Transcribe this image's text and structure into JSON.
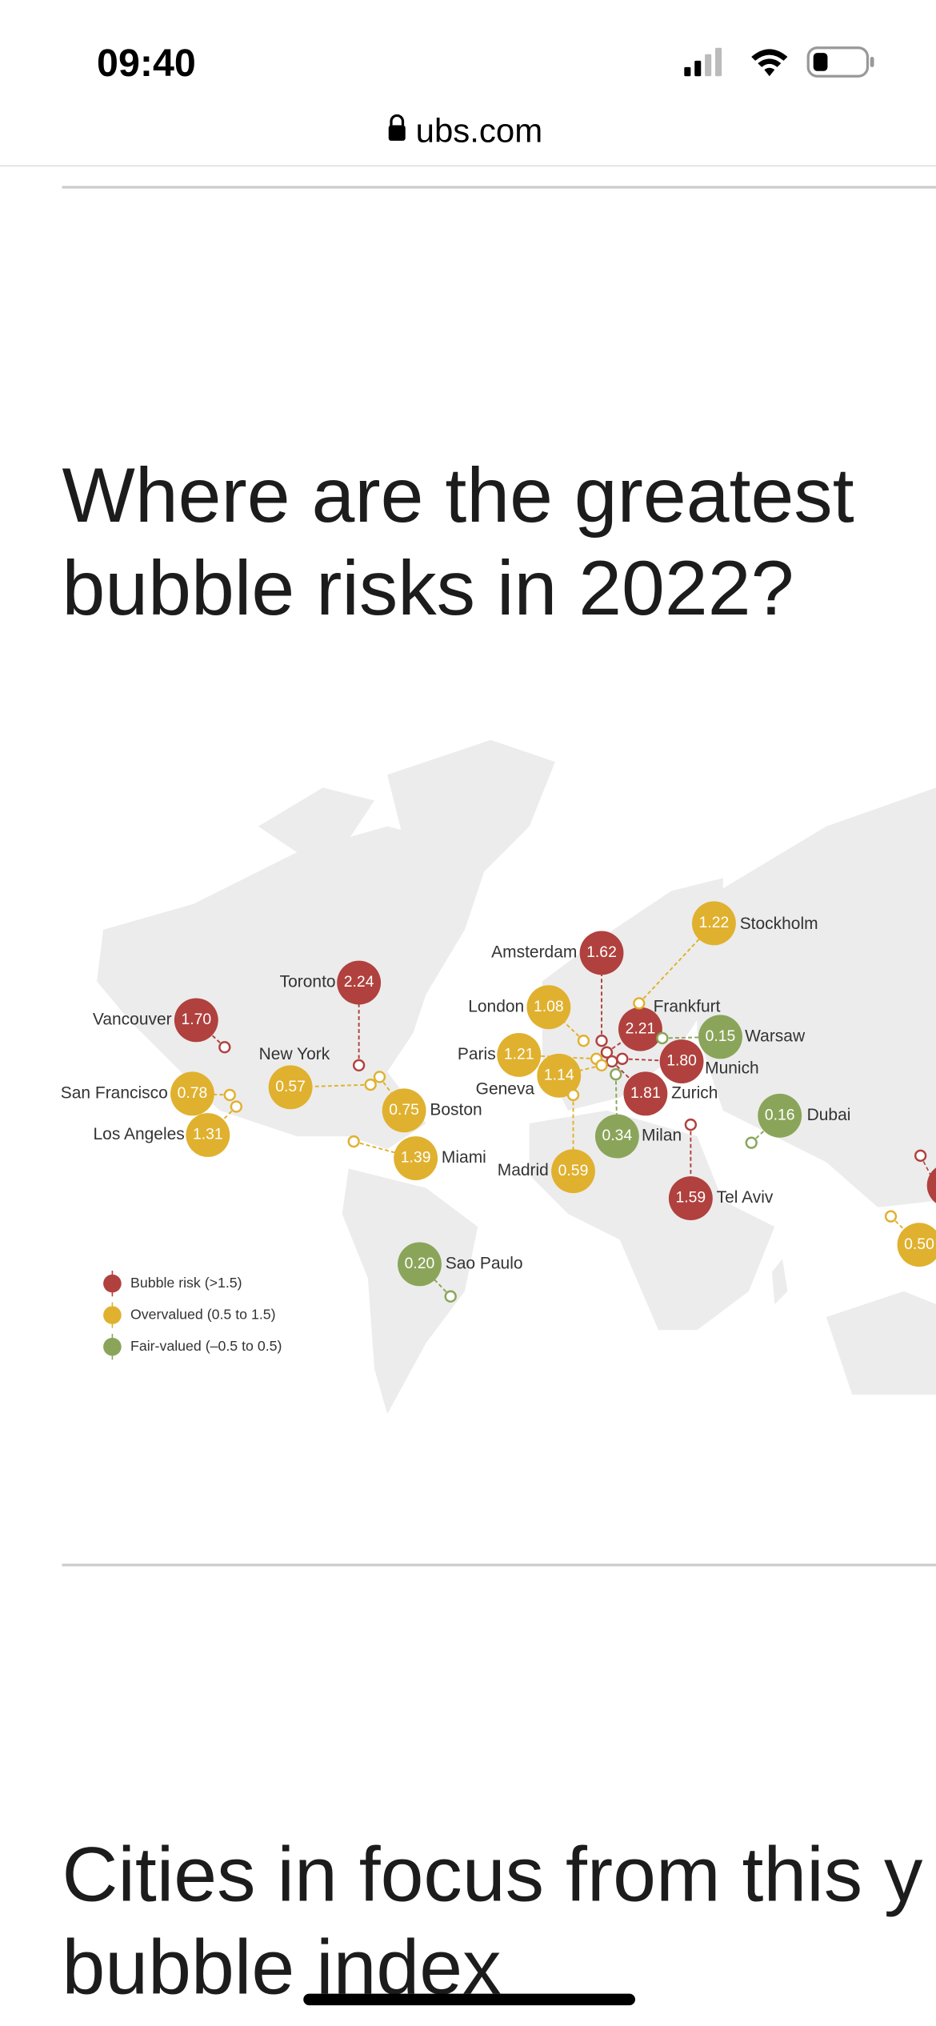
{
  "status_bar": {
    "time": "09:40"
  },
  "browser": {
    "url": "ubs.com"
  },
  "section_1": {
    "heading": [
      "Where are the greatest",
      "bubble risks in 2022?"
    ]
  },
  "map": {
    "groups": [
      {
        "label": "Bubble risk (>1.5)",
        "color": "#b0413e",
        "cities": [
          {
            "name": "Toronto",
            "value": "2.24"
          },
          {
            "name": "Vancouver",
            "value": "1.70"
          },
          {
            "name": "Amsterdam",
            "value": "1.62"
          },
          {
            "name": "Zurich",
            "value": "1.81"
          },
          {
            "name": "Munich",
            "value": "1.80"
          },
          {
            "name": "Frankfurt",
            "value": "2.21"
          },
          {
            "name": "Tel Aviv",
            "value": "1.59"
          }
        ]
      },
      {
        "label": "Overvalued (0.5 to 1.5)",
        "color": "#e0b12f",
        "cities": [
          {
            "name": "Stockholm",
            "value": "1.22"
          },
          {
            "name": "London",
            "value": "1.08"
          },
          {
            "name": "Paris",
            "value": "1.21"
          },
          {
            "name": "Geneva",
            "value": "1.14"
          },
          {
            "name": "Madrid",
            "value": "0.59"
          },
          {
            "name": "New York",
            "value": "0.57"
          },
          {
            "name": "Boston",
            "value": "0.75"
          },
          {
            "name": "San Francisco",
            "value": "0.78"
          },
          {
            "name": "Los Angeles",
            "value": "1.31"
          },
          {
            "name": "Miami",
            "value": "1.39"
          },
          {
            "value": "0.50"
          }
        ]
      },
      {
        "label": "Fair-valued (–0.5 to 0.5)",
        "color": "#8aa55a",
        "cities": [
          {
            "name": "Warsaw",
            "value": "0.15"
          },
          {
            "name": "Milan",
            "value": "0.34"
          },
          {
            "name": "Dubai",
            "value": "0.16"
          },
          {
            "name": "Sao Paulo",
            "value": "0.20"
          }
        ]
      }
    ]
  },
  "section_2": {
    "heading": [
      "Cities in focus from this y",
      "bubble index"
    ]
  }
}
